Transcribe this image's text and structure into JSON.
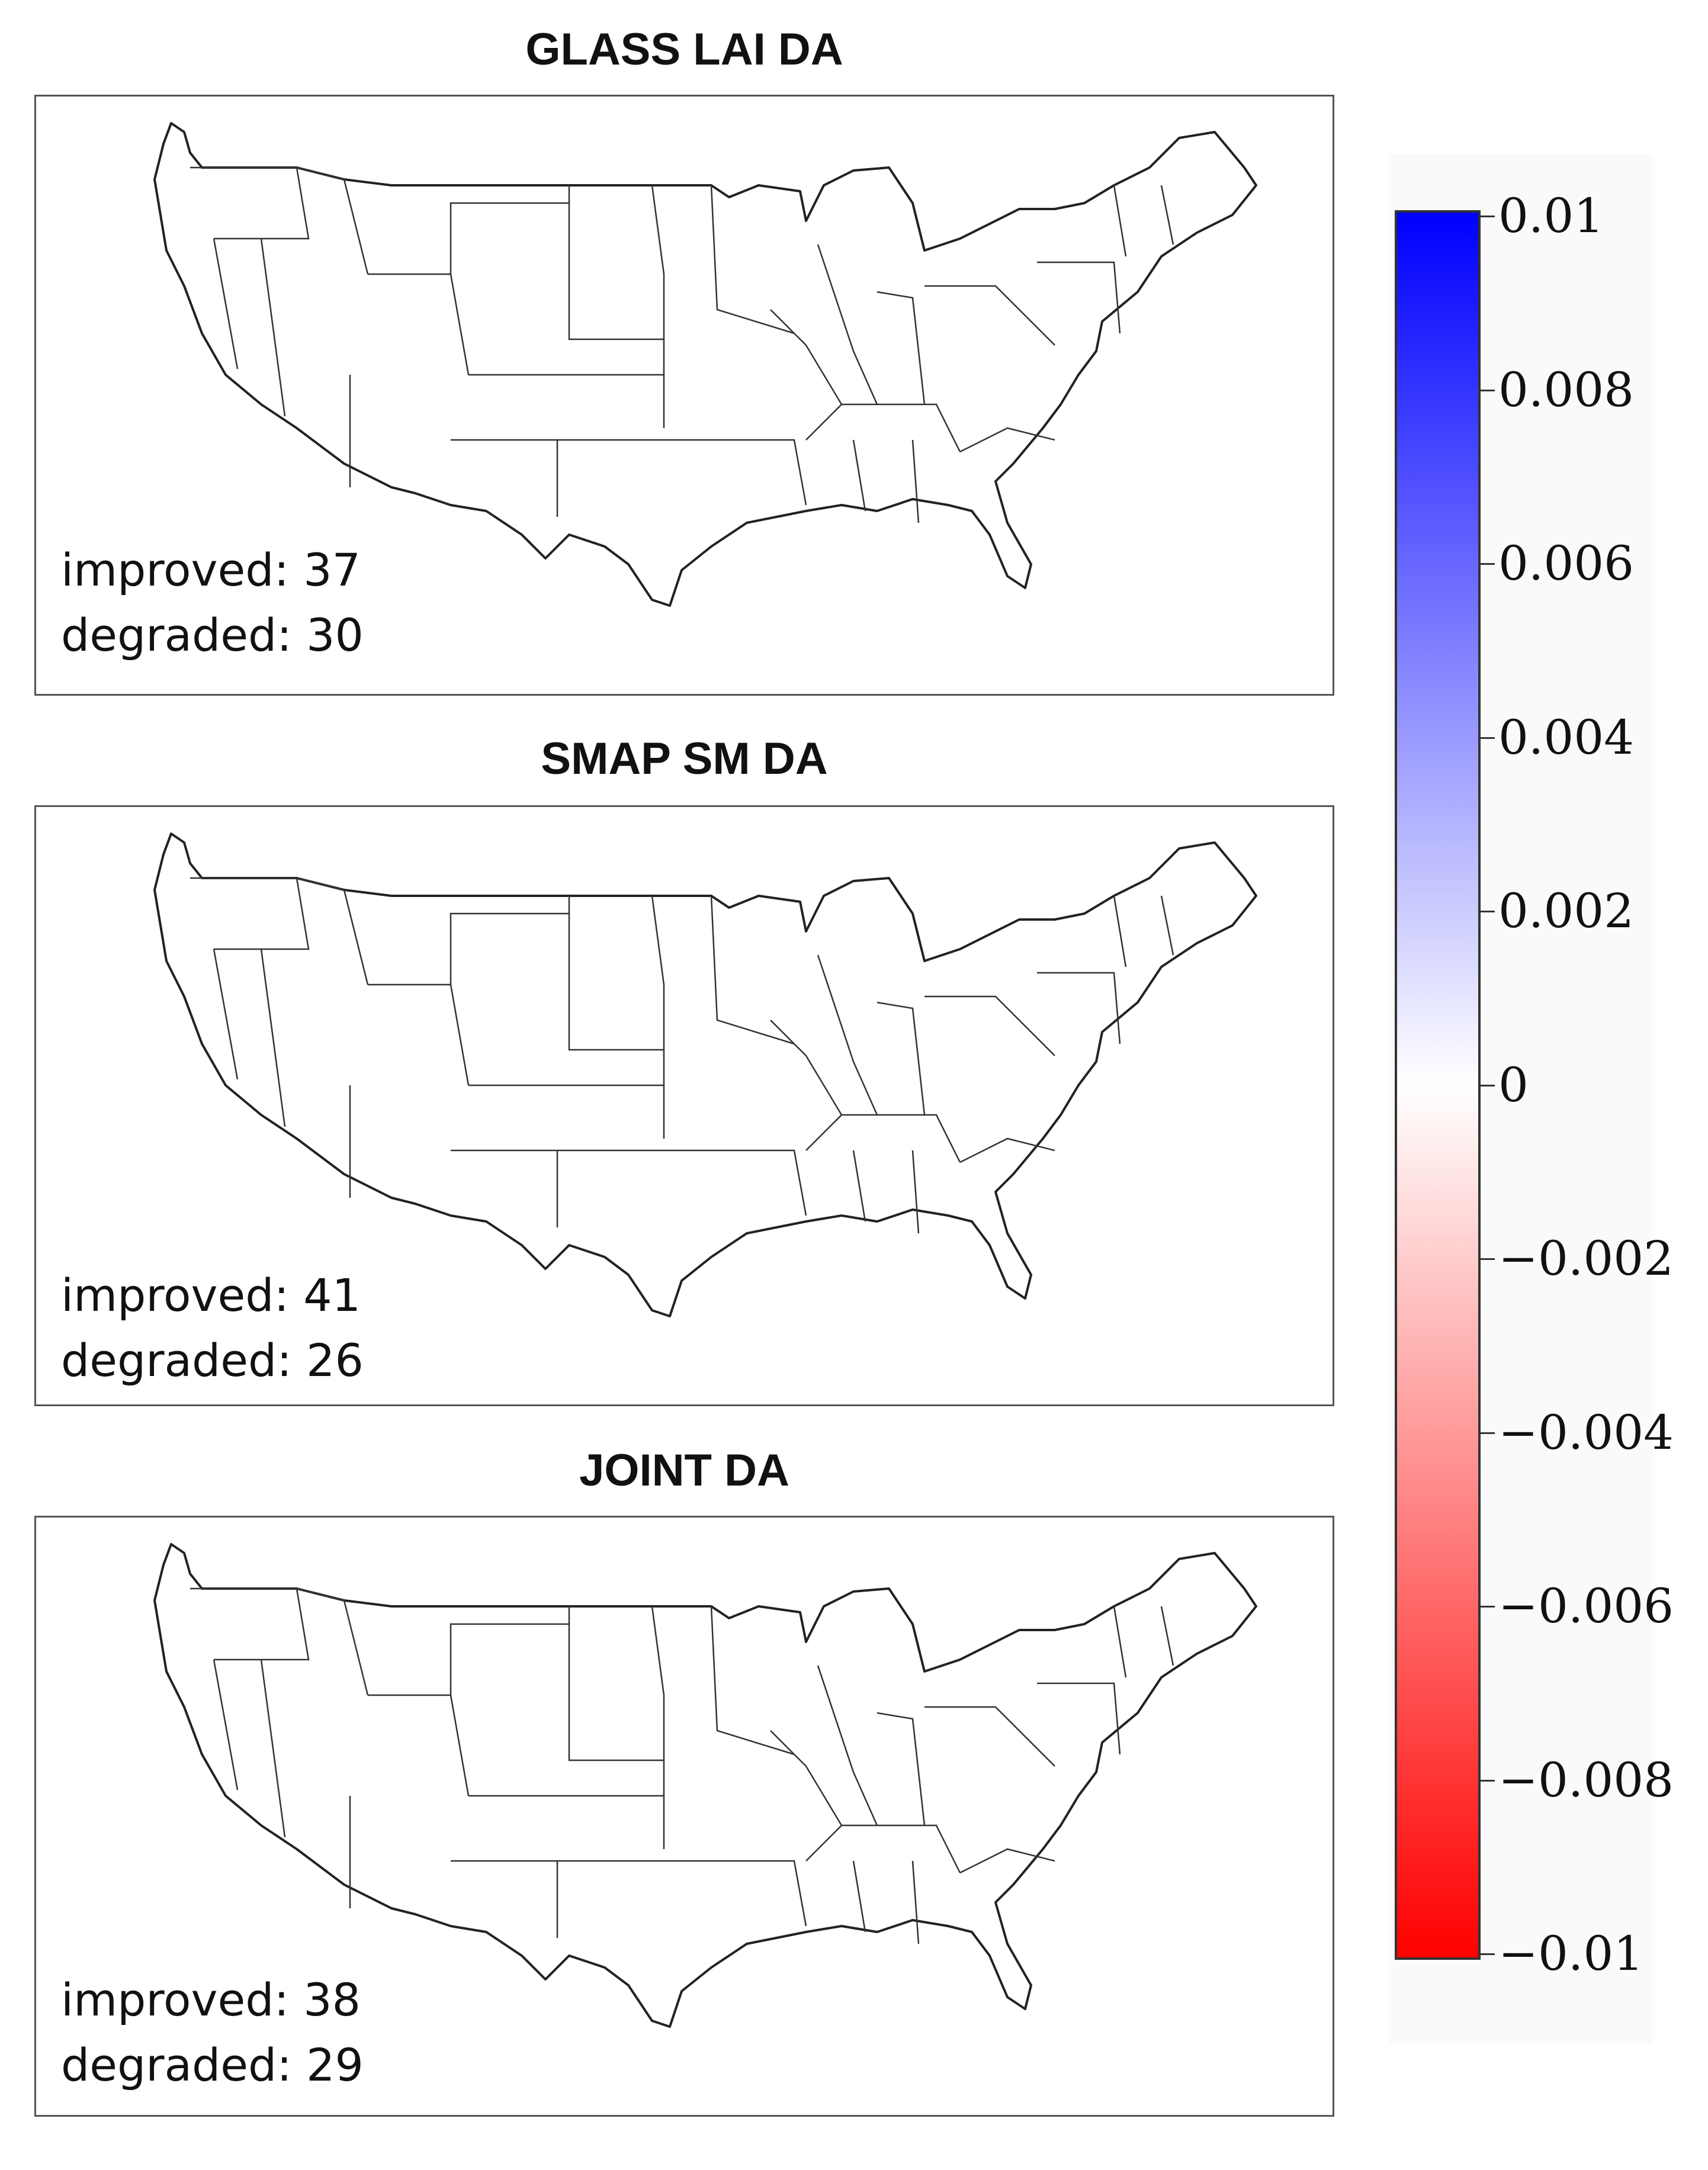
{
  "panels": [
    {
      "title": "GLASS LAI DA",
      "improved_label": "improved:",
      "improved": "37",
      "degraded_label": "degraded:",
      "degraded": "30"
    },
    {
      "title": "SMAP SM DA",
      "improved_label": "improved:",
      "improved": "41",
      "degraded_label": "degraded:",
      "degraded": "26"
    },
    {
      "title": "JOINT DA",
      "improved_label": "improved:",
      "improved": "38",
      "degraded_label": "degraded:",
      "degraded": "29"
    }
  ],
  "colorbar": {
    "min": -0.01,
    "max": 0.01,
    "colors": {
      "max": "#0000ff",
      "mid": "#ffffff",
      "min": "#ff0000"
    },
    "ticks": [
      {
        "value": 0.01,
        "label": "0.01"
      },
      {
        "value": 0.008,
        "label": "0.008"
      },
      {
        "value": 0.006,
        "label": "0.006"
      },
      {
        "value": 0.004,
        "label": "0.004"
      },
      {
        "value": 0.002,
        "label": "0.002"
      },
      {
        "value": 0,
        "label": "0"
      },
      {
        "value": -0.002,
        "label": "−0.002"
      },
      {
        "value": -0.004,
        "label": "−0.004"
      },
      {
        "value": -0.006,
        "label": "−0.006"
      },
      {
        "value": -0.008,
        "label": "−0.008"
      },
      {
        "value": -0.01,
        "label": "−0.01"
      }
    ]
  }
}
